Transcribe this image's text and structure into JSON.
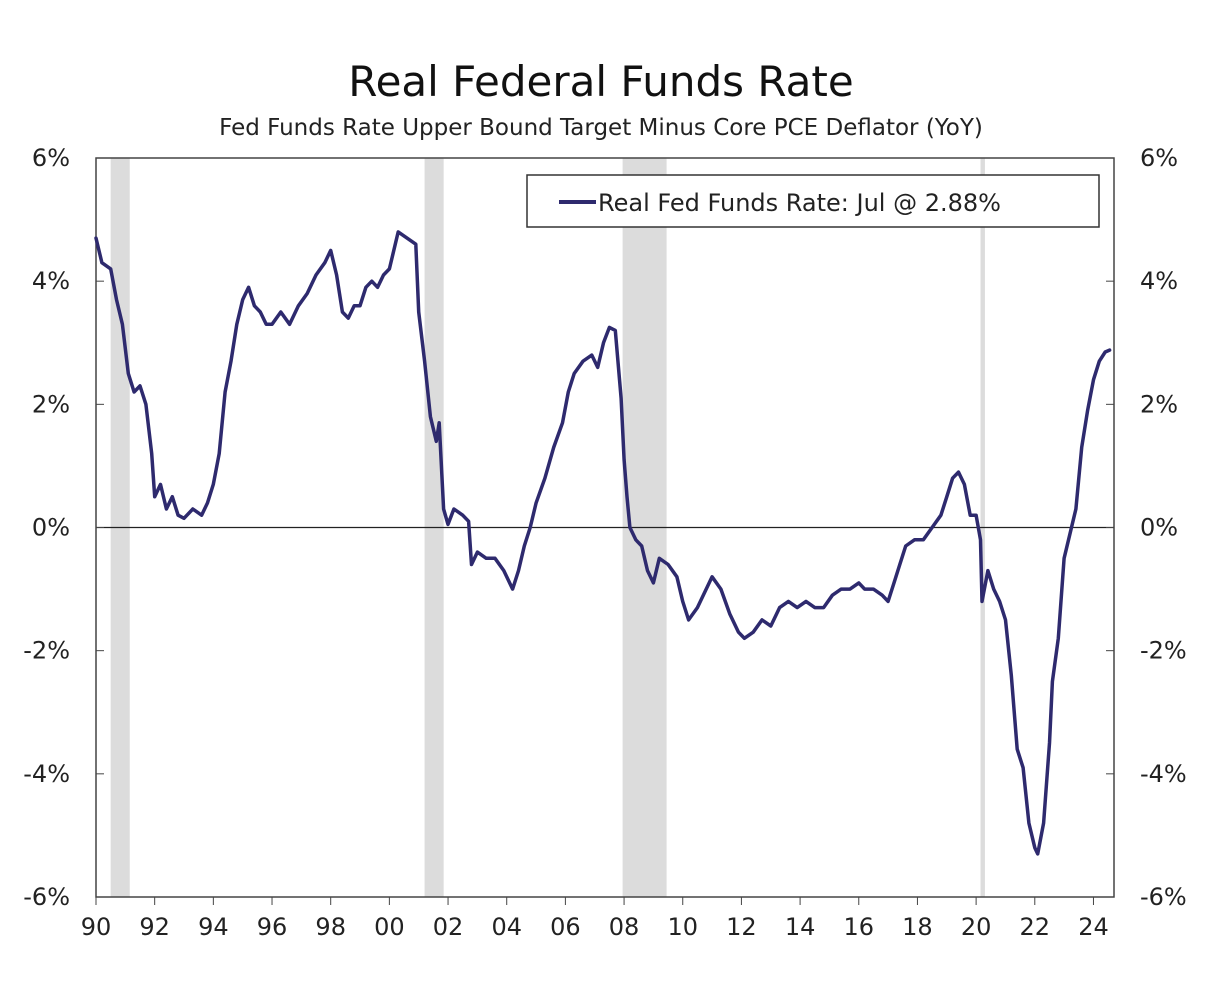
{
  "chart_data": {
    "type": "line",
    "title": "Real Federal Funds Rate",
    "subtitle": "Fed Funds Rate Upper Bound Target Minus Core PCE Deflator (YoY)",
    "xlabel": "",
    "ylabel": "",
    "x_range": [
      1990.0,
      2024.7
    ],
    "ylim": [
      -6,
      6
    ],
    "y_ticks": [
      6,
      4,
      2,
      0,
      -2,
      -4,
      -6
    ],
    "y_tick_labels": [
      "6%",
      "4%",
      "2%",
      "0%",
      "-2%",
      "-4%",
      "-6%"
    ],
    "x_ticks": [
      1990,
      1992,
      1994,
      1996,
      1998,
      2000,
      2002,
      2004,
      2006,
      2008,
      2010,
      2012,
      2014,
      2016,
      2018,
      2020,
      2022,
      2024
    ],
    "x_tick_labels": [
      "90",
      "92",
      "94",
      "96",
      "98",
      "00",
      "02",
      "04",
      "06",
      "08",
      "10",
      "12",
      "14",
      "16",
      "18",
      "20",
      "22",
      "24"
    ],
    "grid": false,
    "zero_line": true,
    "legend_position": "top-right",
    "recessions": [
      [
        1990.5,
        1991.15
      ],
      [
        2001.2,
        2001.85
      ],
      [
        2007.95,
        2009.45
      ],
      [
        2020.15,
        2020.3
      ]
    ],
    "series": [
      {
        "name": "Real Fed Funds Rate: Jul @ 2.88%",
        "color": "#2e2a6e",
        "points": [
          [
            1990.0,
            4.7
          ],
          [
            1990.2,
            4.3
          ],
          [
            1990.5,
            4.2
          ],
          [
            1990.7,
            3.7
          ],
          [
            1990.9,
            3.3
          ],
          [
            1991.1,
            2.5
          ],
          [
            1991.3,
            2.2
          ],
          [
            1991.5,
            2.3
          ],
          [
            1991.7,
            2.0
          ],
          [
            1991.9,
            1.2
          ],
          [
            1992.0,
            0.5
          ],
          [
            1992.2,
            0.7
          ],
          [
            1992.4,
            0.3
          ],
          [
            1992.6,
            0.5
          ],
          [
            1992.8,
            0.2
          ],
          [
            1993.0,
            0.15
          ],
          [
            1993.3,
            0.3
          ],
          [
            1993.6,
            0.2
          ],
          [
            1993.8,
            0.4
          ],
          [
            1994.0,
            0.7
          ],
          [
            1994.2,
            1.2
          ],
          [
            1994.4,
            2.2
          ],
          [
            1994.6,
            2.7
          ],
          [
            1994.8,
            3.3
          ],
          [
            1995.0,
            3.7
          ],
          [
            1995.2,
            3.9
          ],
          [
            1995.4,
            3.6
          ],
          [
            1995.6,
            3.5
          ],
          [
            1995.8,
            3.3
          ],
          [
            1996.0,
            3.3
          ],
          [
            1996.3,
            3.5
          ],
          [
            1996.6,
            3.3
          ],
          [
            1996.9,
            3.6
          ],
          [
            1997.2,
            3.8
          ],
          [
            1997.5,
            4.1
          ],
          [
            1997.8,
            4.3
          ],
          [
            1998.0,
            4.5
          ],
          [
            1998.2,
            4.1
          ],
          [
            1998.4,
            3.5
          ],
          [
            1998.6,
            3.4
          ],
          [
            1998.8,
            3.6
          ],
          [
            1999.0,
            3.6
          ],
          [
            1999.2,
            3.9
          ],
          [
            1999.4,
            4.0
          ],
          [
            1999.6,
            3.9
          ],
          [
            1999.8,
            4.1
          ],
          [
            2000.0,
            4.2
          ],
          [
            2000.3,
            4.8
          ],
          [
            2000.6,
            4.7
          ],
          [
            2000.9,
            4.6
          ],
          [
            2001.0,
            3.5
          ],
          [
            2001.2,
            2.7
          ],
          [
            2001.4,
            1.8
          ],
          [
            2001.6,
            1.4
          ],
          [
            2001.7,
            1.7
          ],
          [
            2001.85,
            0.3
          ],
          [
            2002.0,
            0.05
          ],
          [
            2002.2,
            0.3
          ],
          [
            2002.5,
            0.2
          ],
          [
            2002.7,
            0.1
          ],
          [
            2002.8,
            -0.6
          ],
          [
            2003.0,
            -0.4
          ],
          [
            2003.3,
            -0.5
          ],
          [
            2003.6,
            -0.5
          ],
          [
            2003.9,
            -0.7
          ],
          [
            2004.2,
            -1.0
          ],
          [
            2004.4,
            -0.7
          ],
          [
            2004.6,
            -0.3
          ],
          [
            2004.8,
            0.0
          ],
          [
            2005.0,
            0.4
          ],
          [
            2005.3,
            0.8
          ],
          [
            2005.6,
            1.3
          ],
          [
            2005.9,
            1.7
          ],
          [
            2006.1,
            2.2
          ],
          [
            2006.3,
            2.5
          ],
          [
            2006.6,
            2.7
          ],
          [
            2006.9,
            2.8
          ],
          [
            2007.1,
            2.6
          ],
          [
            2007.3,
            3.0
          ],
          [
            2007.5,
            3.25
          ],
          [
            2007.7,
            3.2
          ],
          [
            2007.9,
            2.1
          ],
          [
            2008.0,
            1.1
          ],
          [
            2008.1,
            0.5
          ],
          [
            2008.2,
            0.0
          ],
          [
            2008.4,
            -0.2
          ],
          [
            2008.6,
            -0.3
          ],
          [
            2008.8,
            -0.7
          ],
          [
            2009.0,
            -0.9
          ],
          [
            2009.2,
            -0.5
          ],
          [
            2009.5,
            -0.6
          ],
          [
            2009.8,
            -0.8
          ],
          [
            2010.0,
            -1.2
          ],
          [
            2010.2,
            -1.5
          ],
          [
            2010.5,
            -1.3
          ],
          [
            2010.8,
            -1.0
          ],
          [
            2011.0,
            -0.8
          ],
          [
            2011.3,
            -1.0
          ],
          [
            2011.6,
            -1.4
          ],
          [
            2011.9,
            -1.7
          ],
          [
            2012.1,
            -1.8
          ],
          [
            2012.4,
            -1.7
          ],
          [
            2012.7,
            -1.5
          ],
          [
            2013.0,
            -1.6
          ],
          [
            2013.3,
            -1.3
          ],
          [
            2013.6,
            -1.2
          ],
          [
            2013.9,
            -1.3
          ],
          [
            2014.2,
            -1.2
          ],
          [
            2014.5,
            -1.3
          ],
          [
            2014.8,
            -1.3
          ],
          [
            2015.1,
            -1.1
          ],
          [
            2015.4,
            -1.0
          ],
          [
            2015.7,
            -1.0
          ],
          [
            2016.0,
            -0.9
          ],
          [
            2016.2,
            -1.0
          ],
          [
            2016.5,
            -1.0
          ],
          [
            2016.8,
            -1.1
          ],
          [
            2017.0,
            -1.2
          ],
          [
            2017.2,
            -0.9
          ],
          [
            2017.4,
            -0.6
          ],
          [
            2017.6,
            -0.3
          ],
          [
            2017.9,
            -0.2
          ],
          [
            2018.2,
            -0.2
          ],
          [
            2018.5,
            0.0
          ],
          [
            2018.8,
            0.2
          ],
          [
            2019.0,
            0.5
          ],
          [
            2019.2,
            0.8
          ],
          [
            2019.4,
            0.9
          ],
          [
            2019.6,
            0.7
          ],
          [
            2019.8,
            0.2
          ],
          [
            2020.0,
            0.2
          ],
          [
            2020.15,
            -0.2
          ],
          [
            2020.2,
            -1.2
          ],
          [
            2020.4,
            -0.7
          ],
          [
            2020.6,
            -1.0
          ],
          [
            2020.8,
            -1.2
          ],
          [
            2021.0,
            -1.5
          ],
          [
            2021.2,
            -2.4
          ],
          [
            2021.4,
            -3.6
          ],
          [
            2021.6,
            -3.9
          ],
          [
            2021.8,
            -4.8
          ],
          [
            2022.0,
            -5.2
          ],
          [
            2022.1,
            -5.3
          ],
          [
            2022.3,
            -4.8
          ],
          [
            2022.5,
            -3.5
          ],
          [
            2022.6,
            -2.5
          ],
          [
            2022.8,
            -1.8
          ],
          [
            2023.0,
            -0.5
          ],
          [
            2023.2,
            -0.1
          ],
          [
            2023.4,
            0.3
          ],
          [
            2023.6,
            1.3
          ],
          [
            2023.8,
            1.9
          ],
          [
            2024.0,
            2.4
          ],
          [
            2024.2,
            2.7
          ],
          [
            2024.4,
            2.85
          ],
          [
            2024.55,
            2.88
          ]
        ]
      }
    ]
  }
}
